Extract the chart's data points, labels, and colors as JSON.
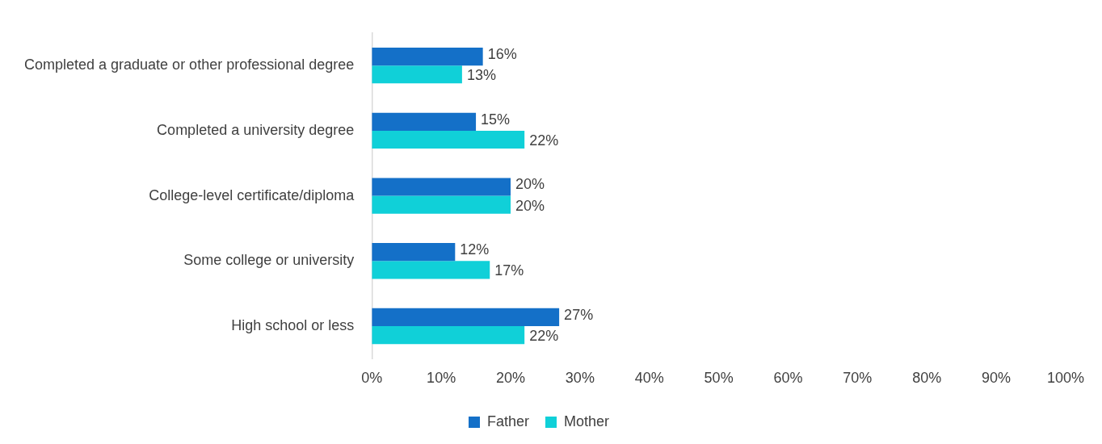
{
  "chart_data": {
    "type": "bar",
    "orientation": "horizontal",
    "categories": [
      "Completed a graduate or other professional degree",
      "Completed a university degree",
      "College-level certificate/diploma",
      "Some college or university",
      "High school or less"
    ],
    "series": [
      {
        "name": "Father",
        "color": "#1470c8",
        "values": [
          16,
          15,
          20,
          12,
          27
        ],
        "value_labels": [
          "16%",
          "15%",
          "20%",
          "12%",
          "27%"
        ]
      },
      {
        "name": "Mother",
        "color": "#10d0d8",
        "values": [
          13,
          22,
          20,
          17,
          22
        ],
        "value_labels": [
          "13%",
          "22%",
          "20%",
          "17%",
          "22%"
        ]
      }
    ],
    "xlim": [
      0,
      100
    ],
    "xticks": [
      {
        "value": 0,
        "label": "0%"
      },
      {
        "value": 10,
        "label": "10%"
      },
      {
        "value": 20,
        "label": "20%"
      },
      {
        "value": 30,
        "label": "30%"
      },
      {
        "value": 40,
        "label": "40%"
      },
      {
        "value": 50,
        "label": "50%"
      },
      {
        "value": 60,
        "label": "60%"
      },
      {
        "value": 70,
        "label": "70%"
      },
      {
        "value": 80,
        "label": "80%"
      },
      {
        "value": 90,
        "label": "90%"
      },
      {
        "value": 100,
        "label": "100%"
      }
    ],
    "grid": false,
    "legend": "bottom"
  }
}
